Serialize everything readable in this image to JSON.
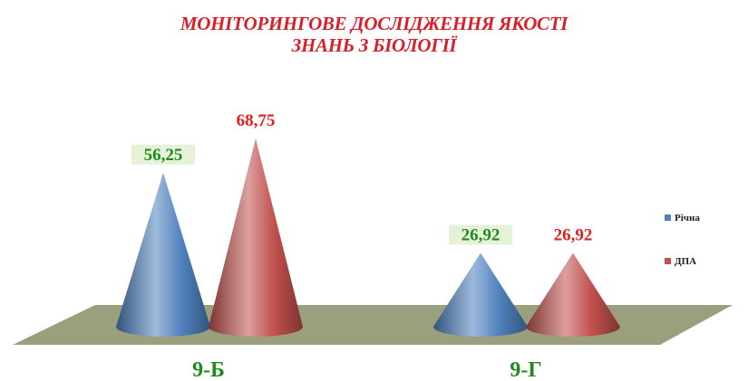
{
  "chart_data": {
    "type": "bar",
    "shape": "cone-3d",
    "title_line1": "МОНІТОРИНГОВЕ ДОСЛІДЖЕННЯ ЯКОСТІ",
    "title_line2": "ЗНАНЬ З БІОЛОГІЇ",
    "categories": [
      "9-Б",
      "9-Г"
    ],
    "series": [
      {
        "name": "Річна",
        "values": [
          56.25,
          26.92
        ],
        "labels": [
          "56,25",
          "26,92"
        ],
        "color": "#4f81bd",
        "label_color": "#1f8a1f",
        "label_bg": "#e6f2d8"
      },
      {
        "name": "ДПА",
        "values": [
          68.75,
          26.92
        ],
        "labels": [
          "68,75",
          "26,92"
        ],
        "color": "#c0504d",
        "label_color": "#e02020",
        "label_bg": "none"
      }
    ],
    "legend_position": "right",
    "floor_color": "#9aa07e",
    "category_label_color": "#1f8a1f",
    "ylim": [
      0,
      80
    ]
  }
}
